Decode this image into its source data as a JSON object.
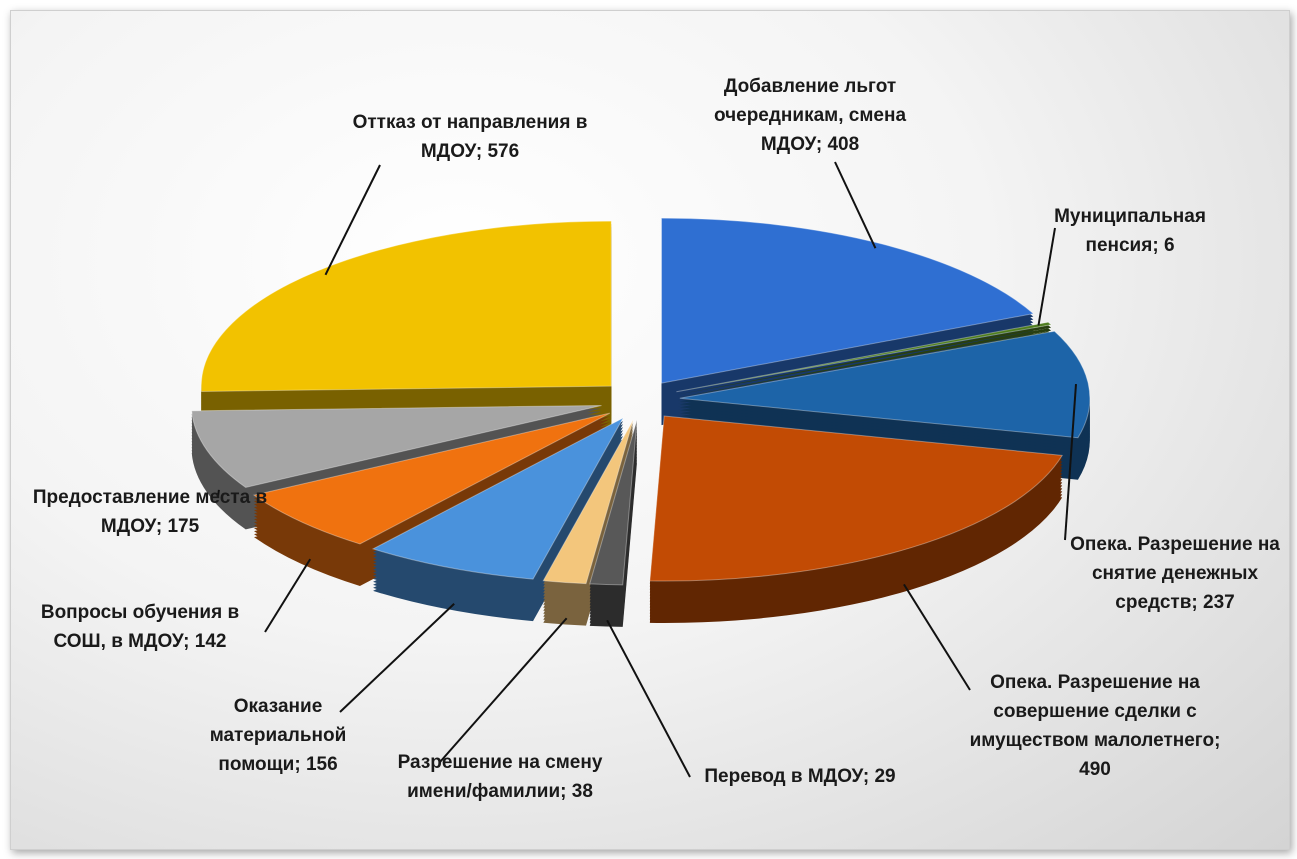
{
  "chart_data": {
    "type": "pie",
    "label_separator": "; ",
    "categories": [
      "Добавление льгот очередникам, смена МДОУ",
      "Муниципальная пенсия",
      "Опека. Разрешение на снятие денежных средств",
      "Опека. Разрешение на совершение сделки с имуществом малолетнего",
      "Перевод в МДОУ",
      "Разрешение на смену имени/фамилии",
      "Оказание материальной помощи",
      "Вопросы обучения в СОШ, в МДОУ",
      "Предоставление места в МДОУ",
      "Оттказ от направления в МДОУ"
    ],
    "values": [
      408,
      6,
      237,
      490,
      29,
      38,
      156,
      142,
      175,
      576
    ],
    "colors": [
      "#2f6fd2",
      "#4f7d1f",
      "#1d64a8",
      "#c24b04",
      "#585858",
      "#f3c67c",
      "#4a92dc",
      "#f0720f",
      "#a6a6a6",
      "#f2c200"
    ]
  }
}
